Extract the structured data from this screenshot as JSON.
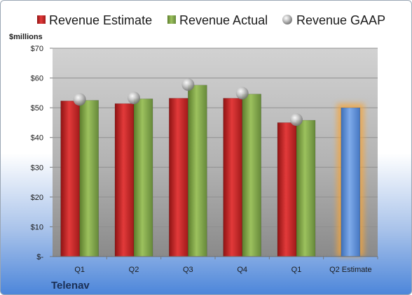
{
  "chart_data": {
    "type": "bar",
    "ylabel": "$millions",
    "company": "Telenav",
    "categories": [
      "Q1",
      "Q2",
      "Q3",
      "Q4",
      "Q1",
      "Q2 Estimate"
    ],
    "y_ticks": [
      "$-",
      "$10",
      "$20",
      "$30",
      "$40",
      "$50",
      "$60",
      "$70"
    ],
    "ylim": [
      0,
      70
    ],
    "grid": true,
    "legend_position": "top",
    "series": [
      {
        "name": "Revenue Estimate",
        "kind": "bar",
        "color": "#d32a2a",
        "values": [
          52.3,
          51.4,
          53.2,
          53.2,
          45.0,
          null
        ]
      },
      {
        "name": "Revenue Actual",
        "kind": "bar",
        "color": "#82a94a",
        "values": [
          52.5,
          53.0,
          57.6,
          54.6,
          45.8,
          null
        ]
      },
      {
        "name": "Revenue GAAP",
        "kind": "marker",
        "color": "#b0b0b0",
        "values": [
          52.8,
          53.3,
          57.8,
          54.9,
          46.0,
          null
        ]
      }
    ],
    "estimate": {
      "category_index": 5,
      "value": 50.0,
      "color": "#5b8fd6",
      "glow_color": "#f5a53a"
    }
  }
}
